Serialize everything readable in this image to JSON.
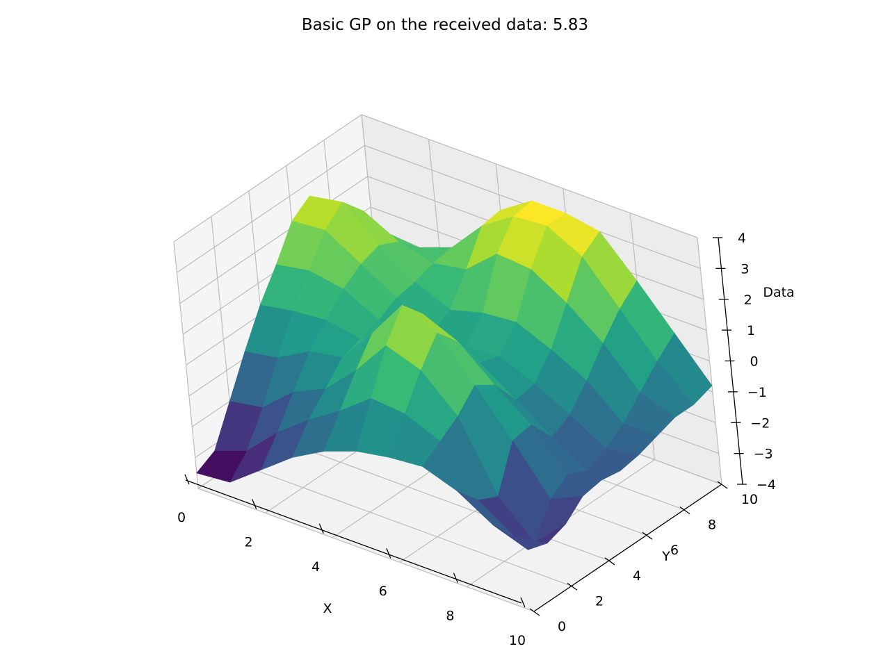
{
  "chart_data": {
    "type": "surface3d",
    "title": "Basic GP on the received data: 5.83",
    "xlabel": "X",
    "ylabel": "Y",
    "zlabel": "Data",
    "xlim": [
      0,
      10
    ],
    "ylim": [
      0,
      10
    ],
    "zlim": [
      -4,
      4
    ],
    "xticks": [
      "0",
      "2",
      "4",
      "6",
      "8",
      "10"
    ],
    "yticks": [
      "0",
      "2",
      "4",
      "6",
      "8",
      "10"
    ],
    "zticks": [
      "−4",
      "−3",
      "−2",
      "−1",
      "0",
      "1",
      "2",
      "3",
      "4"
    ],
    "grid": true,
    "colormap": "viridis",
    "x": [
      0,
      1,
      2,
      3,
      4,
      5,
      6,
      7,
      8,
      9,
      10
    ],
    "y": [
      0,
      1,
      2,
      3,
      4,
      5,
      6,
      7,
      8,
      9,
      10
    ],
    "z": [
      [
        -3.5,
        -3.2,
        -2.0,
        -0.8,
        0.3,
        1.2,
        2.2,
        2.6,
        1.8,
        0.6,
        -0.6
      ],
      [
        -3.4,
        -2.8,
        -1.8,
        -0.6,
        0.5,
        1.4,
        2.3,
        2.8,
        2.1,
        1.0,
        -0.2
      ],
      [
        -2.6,
        -1.8,
        -0.9,
        0.0,
        0.6,
        1.2,
        1.6,
        1.8,
        1.5,
        0.9,
        0.0
      ],
      [
        -1.8,
        -1.0,
        -0.4,
        0.2,
        0.4,
        0.6,
        0.9,
        1.0,
        1.2,
        1.3,
        0.9
      ],
      [
        -1.2,
        -0.3,
        0.6,
        1.4,
        1.0,
        0.4,
        0.2,
        0.5,
        1.4,
        2.4,
        2.5
      ],
      [
        -0.8,
        0.5,
        1.8,
        2.7,
        2.0,
        0.8,
        0.1,
        0.8,
        2.3,
        3.1,
        3.2
      ],
      [
        -0.6,
        0.4,
        1.4,
        2.2,
        1.5,
        0.4,
        0.2,
        0.9,
        2.2,
        3.2,
        3.2
      ],
      [
        -0.5,
        -0.1,
        0.3,
        0.9,
        0.5,
        -0.4,
        -0.3,
        0.4,
        1.5,
        2.6,
        3.0
      ],
      [
        -0.9,
        -1.6,
        -1.9,
        -0.5,
        -0.4,
        -1.2,
        -0.9,
        -0.2,
        0.6,
        1.3,
        1.8
      ],
      [
        -1.6,
        -2.4,
        -3.0,
        -2.0,
        -1.6,
        -1.9,
        -1.6,
        -1.2,
        -0.6,
        0.0,
        0.5
      ],
      [
        -2.0,
        -2.2,
        -2.0,
        -1.5,
        -1.4,
        -1.5,
        -1.4,
        -1.2,
        -1.0,
        -1.0,
        -0.8
      ]
    ]
  }
}
